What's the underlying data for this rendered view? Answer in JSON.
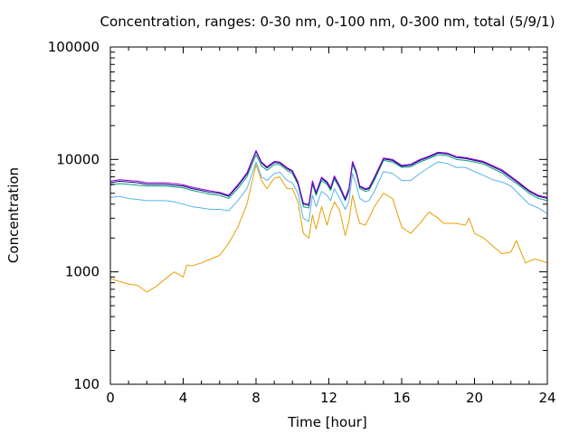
{
  "chart_data": {
    "type": "line",
    "title": "Concentration, ranges: 0-30 nm, 0-100 nm, 0-300 nm, total (5/9/1)",
    "xlabel": "Time [hour]",
    "ylabel": "Concentration",
    "xlim": [
      0,
      24
    ],
    "ylim": [
      100,
      100000
    ],
    "yscale": "log",
    "grid": false,
    "x_ticks": [
      0,
      4,
      8,
      12,
      16,
      20,
      24
    ],
    "x_tick_labels": [
      "0",
      "4",
      "8",
      "12",
      "16",
      "20",
      "24"
    ],
    "y_ticks": [
      100,
      1000,
      10000,
      100000
    ],
    "y_tick_labels": [
      "100",
      "1000",
      "10000",
      "100000"
    ],
    "series": [
      {
        "color": "#e69f00",
        "x": [
          0,
          0.5,
          1,
          1.5,
          2,
          2.5,
          3,
          3.5,
          4,
          4.2,
          4.5,
          5,
          5.5,
          6,
          6.5,
          7,
          7.5,
          8,
          8.3,
          8.6,
          9,
          9.3,
          9.7,
          10,
          10.3,
          10.6,
          10.9,
          11.1,
          11.3,
          11.6,
          11.9,
          12.1,
          12.3,
          12.6,
          12.9,
          13.1,
          13.3,
          13.5,
          13.7,
          14.0,
          14.2,
          14.5,
          15.0,
          15.5,
          16.0,
          16.5,
          17.0,
          17.5,
          18.0,
          18.3,
          18.7,
          19.0,
          19.5,
          19.7,
          20.0,
          20.5,
          21.0,
          21.5,
          22.0,
          22.3,
          22.8,
          23.3,
          23.7,
          24.0
        ],
        "y": [
          870,
          820,
          780,
          760,
          660,
          740,
          860,
          1000,
          900,
          1150,
          1130,
          1200,
          1300,
          1400,
          1800,
          2500,
          4000,
          9000,
          6500,
          5500,
          6800,
          7000,
          5500,
          5500,
          4200,
          2200,
          2000,
          3200,
          2400,
          3800,
          2600,
          3400,
          4200,
          3500,
          2100,
          2800,
          4800,
          3500,
          2700,
          2600,
          3000,
          3800,
          5000,
          4500,
          2500,
          2200,
          2700,
          3400,
          3000,
          2700,
          2700,
          2700,
          2600,
          3000,
          2200,
          2000,
          1700,
          1450,
          1500,
          1900,
          1200,
          1300,
          1250,
          1200
        ]
      },
      {
        "color": "#56b4e9",
        "x": [
          0,
          0.5,
          1,
          1.5,
          2,
          2.5,
          3,
          3.5,
          4,
          4.5,
          5,
          5.5,
          6,
          6.5,
          7,
          7.5,
          8,
          8.3,
          8.6,
          9,
          9.3,
          9.7,
          10,
          10.3,
          10.6,
          10.9,
          11.1,
          11.3,
          11.6,
          11.9,
          12.1,
          12.3,
          12.6,
          12.9,
          13.1,
          13.3,
          13.5,
          13.7,
          14.0,
          14.2,
          14.5,
          15.0,
          15.5,
          16.0,
          16.5,
          17.0,
          17.5,
          18.0,
          18.5,
          19.0,
          19.5,
          20.0,
          20.5,
          21.0,
          21.5,
          22.0,
          22.5,
          23.0,
          23.5,
          24.0
        ],
        "y": [
          4600,
          4700,
          4500,
          4400,
          4300,
          4300,
          4300,
          4200,
          4000,
          3800,
          3700,
          3600,
          3600,
          3500,
          4300,
          5500,
          9500,
          7000,
          6500,
          7500,
          7700,
          6500,
          6200,
          5000,
          3000,
          2800,
          4800,
          3800,
          5200,
          4800,
          4300,
          5500,
          4500,
          3600,
          4200,
          7500,
          6000,
          4500,
          4200,
          4300,
          5200,
          7800,
          7500,
          6500,
          6500,
          7500,
          8500,
          9500,
          9200,
          8500,
          8500,
          7800,
          7200,
          6600,
          6300,
          5800,
          4800,
          4000,
          3700,
          3300
        ]
      },
      {
        "color": "#009e73",
        "x": [
          0,
          0.5,
          1,
          1.5,
          2,
          2.5,
          3,
          3.5,
          4,
          4.5,
          5,
          5.5,
          6,
          6.5,
          7,
          7.5,
          8,
          8.3,
          8.6,
          9,
          9.3,
          9.7,
          10,
          10.3,
          10.6,
          10.9,
          11.1,
          11.3,
          11.6,
          11.9,
          12.1,
          12.3,
          12.6,
          12.9,
          13.1,
          13.3,
          13.5,
          13.7,
          14.0,
          14.2,
          14.5,
          15.0,
          15.5,
          16.0,
          16.5,
          17.0,
          17.5,
          18.0,
          18.5,
          19.0,
          19.5,
          20.0,
          20.5,
          21.0,
          21.5,
          22.0,
          22.5,
          23.0,
          23.5,
          24.0
        ],
        "y": [
          5900,
          6100,
          6000,
          5900,
          5800,
          5800,
          5800,
          5700,
          5600,
          5300,
          5100,
          4900,
          4800,
          4500,
          5500,
          7000,
          11000,
          8800,
          8000,
          9000,
          9000,
          8000,
          7500,
          6000,
          3800,
          3700,
          6000,
          4800,
          6500,
          6000,
          5300,
          6700,
          5500,
          4300,
          5200,
          9000,
          7500,
          5500,
          5200,
          5300,
          6500,
          9800,
          9500,
          8500,
          8600,
          9500,
          10200,
          11000,
          10800,
          10000,
          9800,
          9500,
          9100,
          8300,
          7600,
          6600,
          5800,
          5000,
          4500,
          4300
        ]
      },
      {
        "color": "#000080",
        "x": [
          0,
          0.5,
          1,
          1.5,
          2,
          2.5,
          3,
          3.5,
          4,
          4.5,
          5,
          5.5,
          6,
          6.5,
          7,
          7.5,
          8,
          8.3,
          8.6,
          9,
          9.3,
          9.7,
          10,
          10.3,
          10.6,
          10.9,
          11.1,
          11.3,
          11.6,
          11.9,
          12.1,
          12.3,
          12.6,
          12.9,
          13.1,
          13.3,
          13.5,
          13.7,
          14.0,
          14.2,
          14.5,
          15.0,
          15.5,
          16.0,
          16.5,
          17.0,
          17.5,
          18.0,
          18.5,
          19.0,
          19.5,
          20.0,
          20.5,
          21.0,
          21.5,
          22.0,
          22.5,
          23.0,
          23.5,
          24.0
        ],
        "y": [
          6200,
          6400,
          6300,
          6200,
          6000,
          6000,
          6000,
          5900,
          5800,
          5500,
          5300,
          5100,
          5000,
          4700,
          5800,
          7400,
          11800,
          9300,
          8400,
          9400,
          9300,
          8300,
          7800,
          6200,
          4000,
          3900,
          6300,
          5000,
          6800,
          6200,
          5500,
          7000,
          5700,
          4400,
          5400,
          9400,
          7800,
          5700,
          5400,
          5500,
          6800,
          10100,
          9800,
          8700,
          8900,
          9800,
          10500,
          11400,
          11200,
          10400,
          10200,
          9800,
          9400,
          8600,
          7900,
          6900,
          6000,
          5200,
          4700,
          4500
        ]
      },
      {
        "color": "#9400d3",
        "x": [
          0,
          0.5,
          1,
          1.5,
          2,
          2.5,
          3,
          3.5,
          4,
          4.5,
          5,
          5.5,
          6,
          6.5,
          7,
          7.5,
          8,
          8.3,
          8.6,
          9,
          9.3,
          9.7,
          10,
          10.3,
          10.6,
          10.9,
          11.1,
          11.3,
          11.6,
          11.9,
          12.1,
          12.3,
          12.6,
          12.9,
          13.1,
          13.3,
          13.5,
          13.7,
          14.0,
          14.2,
          14.5,
          15.0,
          15.5,
          16.0,
          16.5,
          17.0,
          17.5,
          18.0,
          18.5,
          19.0,
          19.5,
          20.0,
          20.5,
          21.0,
          21.5,
          22.0,
          22.5,
          23.0,
          23.5,
          24.0
        ],
        "y": [
          6400,
          6600,
          6500,
          6400,
          6200,
          6200,
          6200,
          6100,
          5950,
          5650,
          5450,
          5250,
          5100,
          4800,
          5950,
          7600,
          12000,
          9500,
          8600,
          9600,
          9500,
          8450,
          7950,
          6350,
          4100,
          4000,
          6450,
          5100,
          6950,
          6350,
          5600,
          7150,
          5800,
          4500,
          5500,
          9600,
          7950,
          5800,
          5500,
          5600,
          6950,
          10300,
          10000,
          8850,
          9050,
          10000,
          10700,
          11600,
          11400,
          10600,
          10400,
          10000,
          9600,
          8800,
          8100,
          7050,
          6150,
          5300,
          4800,
          4600
        ]
      }
    ]
  }
}
